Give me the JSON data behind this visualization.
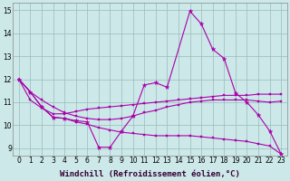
{
  "xlabel": "Windchill (Refroidissement éolien,°C)",
  "bg_color": "#cce8e8",
  "line_color": "#aa00aa",
  "xlim": [
    -0.5,
    23.5
  ],
  "ylim": [
    8.7,
    15.3
  ],
  "yticks": [
    9,
    10,
    11,
    12,
    13,
    14,
    15
  ],
  "xticks": [
    0,
    1,
    2,
    3,
    4,
    5,
    6,
    7,
    8,
    9,
    10,
    11,
    12,
    13,
    14,
    15,
    16,
    17,
    18,
    19,
    20,
    21,
    22,
    23
  ],
  "grid_color": "#99bbbb",
  "tick_fontsize": 5.5,
  "xlabel_fontsize": 6.5,
  "series": [
    {
      "x": [
        0,
        1,
        2,
        3,
        4,
        5,
        6,
        7,
        8,
        9,
        10,
        11,
        12,
        13,
        15,
        16,
        17,
        18,
        19,
        20,
        21,
        22,
        23
      ],
      "y": [
        12.0,
        11.45,
        10.8,
        10.35,
        10.3,
        10.2,
        10.15,
        9.05,
        9.05,
        9.75,
        10.4,
        11.75,
        11.85,
        11.65,
        14.95,
        14.4,
        13.3,
        12.9,
        11.4,
        11.0,
        10.45,
        9.75,
        8.75
      ],
      "marker": "*",
      "msize": 3.5
    },
    {
      "x": [
        0,
        1,
        2,
        3,
        4,
        5,
        6,
        7,
        8,
        9,
        10,
        11,
        12,
        13,
        14,
        15,
        16,
        17,
        18,
        19,
        20,
        21,
        22,
        23
      ],
      "y": [
        12.0,
        11.1,
        10.75,
        10.5,
        10.5,
        10.6,
        10.7,
        10.75,
        10.8,
        10.85,
        10.9,
        10.95,
        11.0,
        11.05,
        11.1,
        11.15,
        11.2,
        11.25,
        11.3,
        11.3,
        11.3,
        11.35,
        11.35,
        11.35
      ],
      "marker": "s",
      "msize": 2.0
    },
    {
      "x": [
        0,
        1,
        2,
        3,
        4,
        5,
        6,
        7,
        8,
        9,
        10,
        11,
        12,
        13,
        14,
        15,
        16,
        17,
        18,
        19,
        20,
        21,
        22,
        23
      ],
      "y": [
        12.0,
        11.45,
        11.1,
        10.8,
        10.55,
        10.4,
        10.3,
        10.25,
        10.25,
        10.3,
        10.4,
        10.55,
        10.65,
        10.8,
        10.9,
        11.0,
        11.05,
        11.1,
        11.1,
        11.1,
        11.1,
        11.05,
        11.0,
        11.05
      ],
      "marker": "s",
      "msize": 2.0
    },
    {
      "x": [
        0,
        1,
        2,
        3,
        4,
        5,
        6,
        7,
        8,
        9,
        10,
        11,
        12,
        13,
        14,
        15,
        16,
        17,
        18,
        19,
        20,
        21,
        22,
        23
      ],
      "y": [
        12.0,
        11.45,
        10.8,
        10.35,
        10.3,
        10.15,
        10.05,
        9.9,
        9.8,
        9.7,
        9.65,
        9.6,
        9.55,
        9.55,
        9.55,
        9.55,
        9.5,
        9.45,
        9.4,
        9.35,
        9.3,
        9.2,
        9.1,
        8.75
      ],
      "marker": "s",
      "msize": 2.0
    }
  ]
}
